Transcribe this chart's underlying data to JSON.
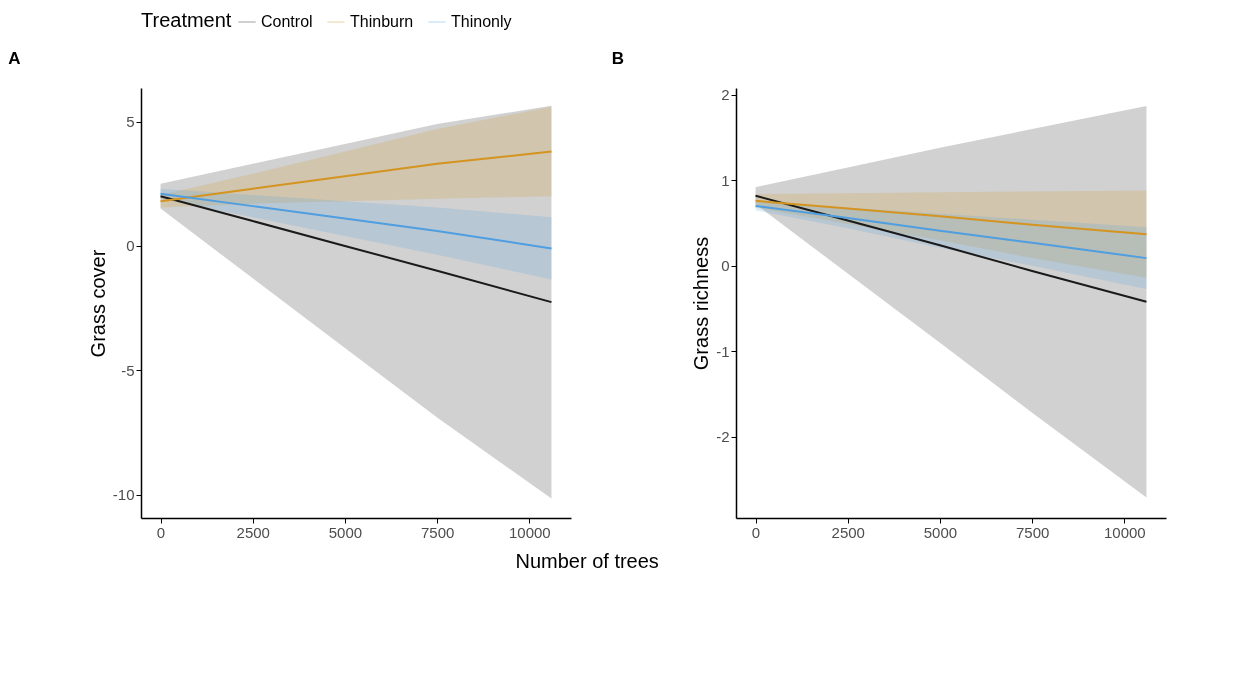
{
  "chart_data": [
    {
      "type": "line",
      "title": "A",
      "xlabel": "Number of trees",
      "ylabel": "Grass cover",
      "legend_title": "Treatment",
      "legend": "top",
      "x": [
        0,
        2500,
        5000,
        7500,
        10600
      ],
      "xlim": [
        -530,
        11130
      ],
      "xticks": [
        0,
        2500,
        5000,
        7500,
        10000
      ],
      "ylim": [
        -10.94,
        6.35
      ],
      "yticks": [
        -10,
        -5,
        0,
        5
      ],
      "series": [
        {
          "name": "Control",
          "color": "#1a1a1a",
          "values": [
            2.0,
            1.0,
            0.0,
            -1.0,
            -2.26
          ],
          "lower": [
            1.5,
            -1.3,
            -4.1,
            -6.9,
            -10.16
          ],
          "upper": [
            2.5,
            3.3,
            4.1,
            4.9,
            5.64
          ]
        },
        {
          "name": "Thinburn",
          "color": "#d4941f",
          "values": [
            1.8,
            2.3,
            2.8,
            3.3,
            3.8
          ],
          "lower": [
            1.55,
            1.7,
            1.8,
            1.9,
            2.0
          ],
          "upper": [
            2.05,
            2.9,
            3.8,
            4.7,
            5.6
          ]
        },
        {
          "name": "Thinonly",
          "color": "#4e9ee0",
          "values": [
            2.1,
            1.6,
            1.1,
            0.6,
            -0.1
          ],
          "lower": [
            1.9,
            1.15,
            0.4,
            -0.35,
            -1.35
          ],
          "upper": [
            2.3,
            2.05,
            1.8,
            1.55,
            1.15
          ]
        }
      ]
    },
    {
      "type": "line",
      "title": "B",
      "ylabel": "Grass richness",
      "x": [
        0,
        2500,
        5000,
        7500,
        10600
      ],
      "xlim": [
        -530,
        11130
      ],
      "xticks": [
        0,
        2500,
        5000,
        7500,
        10000
      ],
      "ylim": [
        -2.95,
        2.08
      ],
      "yticks": [
        -2,
        -1,
        0,
        1,
        2
      ],
      "series": [
        {
          "name": "Control",
          "color": "#1a1a1a",
          "values": [
            0.82,
            0.53,
            0.24,
            -0.06,
            -0.42
          ],
          "lower": [
            0.72,
            -0.09,
            -0.9,
            -1.72,
            -2.71
          ],
          "upper": [
            0.92,
            1.15,
            1.38,
            1.6,
            1.87
          ]
        },
        {
          "name": "Thinburn",
          "color": "#d4941f",
          "values": [
            0.76,
            0.67,
            0.58,
            0.48,
            0.37
          ],
          "lower": [
            0.68,
            0.49,
            0.3,
            0.09,
            -0.14
          ],
          "upper": [
            0.84,
            0.85,
            0.86,
            0.87,
            0.88
          ]
        },
        {
          "name": "Thinonly",
          "color": "#4e9ee0",
          "values": [
            0.7,
            0.56,
            0.41,
            0.27,
            0.09
          ],
          "lower": [
            0.65,
            0.44,
            0.21,
            0.0,
            -0.27
          ],
          "upper": [
            0.75,
            0.68,
            0.61,
            0.54,
            0.45
          ]
        }
      ]
    }
  ]
}
